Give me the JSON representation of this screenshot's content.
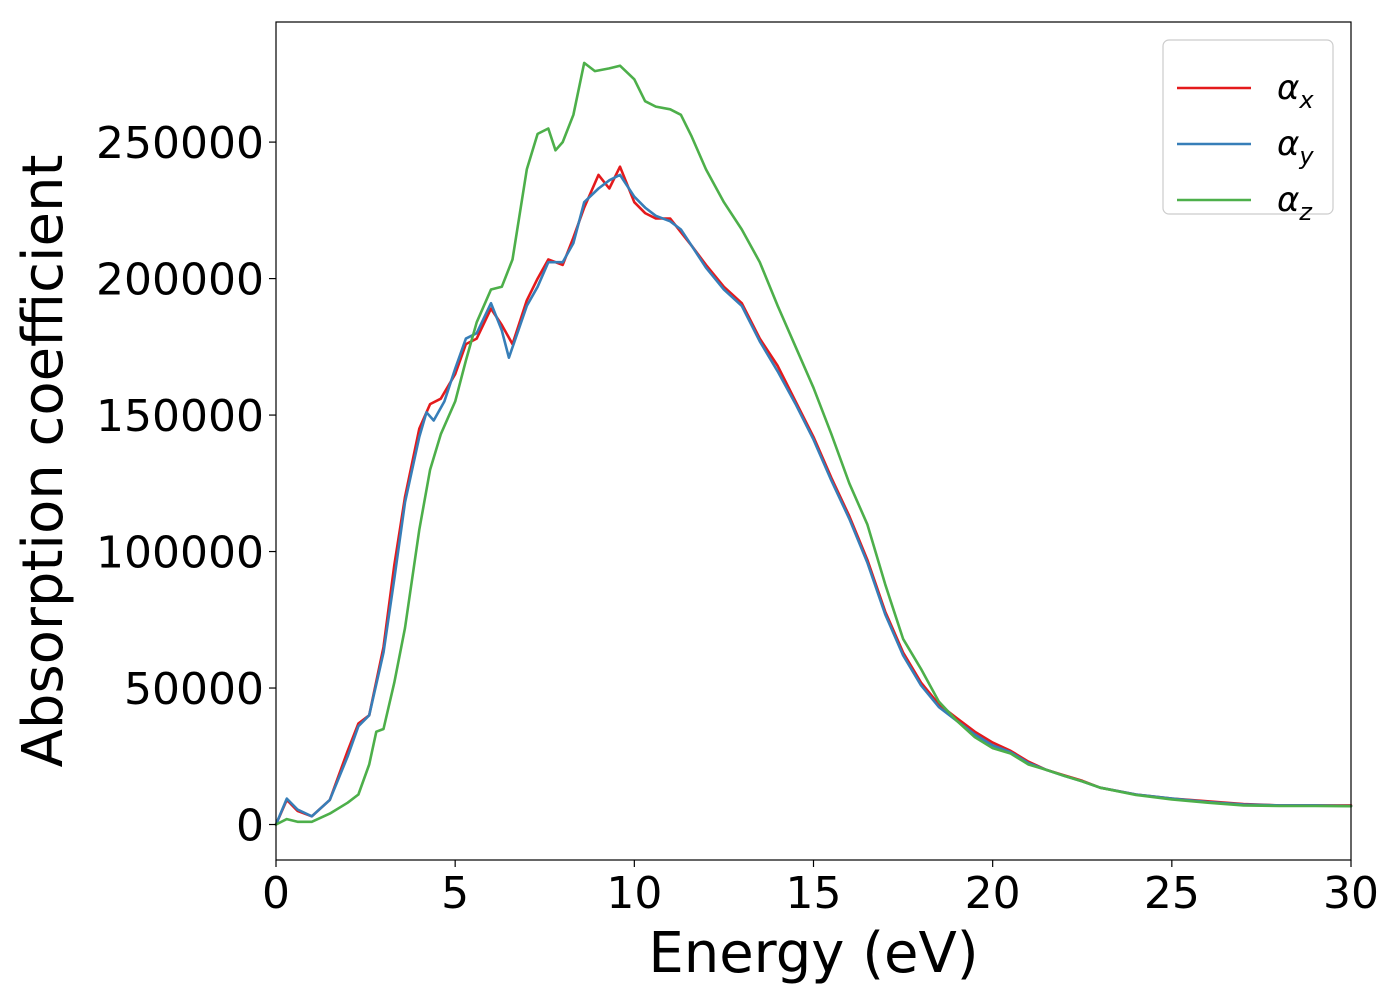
{
  "chart_data": {
    "type": "line",
    "xlabel": "Energy (eV)",
    "ylabel": "Absorption coefficient",
    "xlim": [
      0,
      30
    ],
    "ylim": [
      -13000,
      294000
    ],
    "xticks": [
      0,
      5,
      10,
      15,
      20,
      25,
      30
    ],
    "yticks": [
      0,
      50000,
      100000,
      150000,
      200000,
      250000
    ],
    "xtick_labels": [
      "0",
      "5",
      "10",
      "15",
      "20",
      "25",
      "30"
    ],
    "ytick_labels": [
      "0",
      "50000",
      "100000",
      "150000",
      "200000",
      "250000"
    ],
    "grid": false,
    "legend_position": "top-right",
    "series": [
      {
        "name": "α",
        "subscript": "x",
        "color": "#e41a1c",
        "points": [
          [
            0,
            0
          ],
          [
            0.3,
            9000
          ],
          [
            0.6,
            5000
          ],
          [
            1.0,
            3000
          ],
          [
            1.5,
            9000
          ],
          [
            2.0,
            27000
          ],
          [
            2.3,
            37000
          ],
          [
            2.6,
            40000
          ],
          [
            3.0,
            65000
          ],
          [
            3.3,
            95000
          ],
          [
            3.6,
            120000
          ],
          [
            4.0,
            145000
          ],
          [
            4.3,
            154000
          ],
          [
            4.6,
            156000
          ],
          [
            5.0,
            165000
          ],
          [
            5.3,
            176000
          ],
          [
            5.6,
            178000
          ],
          [
            6.0,
            189000
          ],
          [
            6.3,
            183000
          ],
          [
            6.6,
            176000
          ],
          [
            7.0,
            192000
          ],
          [
            7.3,
            200000
          ],
          [
            7.6,
            207000
          ],
          [
            8.0,
            205000
          ],
          [
            8.3,
            215000
          ],
          [
            8.6,
            226000
          ],
          [
            9.0,
            238000
          ],
          [
            9.3,
            233000
          ],
          [
            9.6,
            241000
          ],
          [
            10.0,
            228000
          ],
          [
            10.3,
            224000
          ],
          [
            10.6,
            222000
          ],
          [
            11.0,
            222000
          ],
          [
            11.3,
            217000
          ],
          [
            11.6,
            212000
          ],
          [
            12.0,
            205000
          ],
          [
            12.5,
            197000
          ],
          [
            13.0,
            191000
          ],
          [
            13.5,
            178000
          ],
          [
            14.0,
            168000
          ],
          [
            14.5,
            155000
          ],
          [
            15.0,
            142000
          ],
          [
            15.5,
            127000
          ],
          [
            16.0,
            113000
          ],
          [
            16.5,
            97000
          ],
          [
            17.0,
            78000
          ],
          [
            17.5,
            63000
          ],
          [
            18.0,
            52000
          ],
          [
            18.5,
            44000
          ],
          [
            19.0,
            39000
          ],
          [
            19.5,
            34000
          ],
          [
            20.0,
            30000
          ],
          [
            20.5,
            27000
          ],
          [
            21.0,
            23000
          ],
          [
            21.5,
            20000
          ],
          [
            22.0,
            18000
          ],
          [
            22.5,
            16000
          ],
          [
            23.0,
            13500
          ],
          [
            24.0,
            11000
          ],
          [
            25.0,
            9500
          ],
          [
            26.0,
            8500
          ],
          [
            27.0,
            7500
          ],
          [
            28.0,
            7000
          ],
          [
            29.0,
            7000
          ],
          [
            30.0,
            7000
          ]
        ]
      },
      {
        "name": "α",
        "subscript": "y",
        "color": "#377eb8",
        "points": [
          [
            0,
            0
          ],
          [
            0.3,
            9500
          ],
          [
            0.6,
            5500
          ],
          [
            1.0,
            3000
          ],
          [
            1.5,
            9000
          ],
          [
            2.0,
            25000
          ],
          [
            2.3,
            36000
          ],
          [
            2.6,
            40000
          ],
          [
            3.0,
            63000
          ],
          [
            3.3,
            90000
          ],
          [
            3.6,
            118000
          ],
          [
            4.0,
            142000
          ],
          [
            4.2,
            151000
          ],
          [
            4.4,
            148000
          ],
          [
            4.7,
            155000
          ],
          [
            5.0,
            167000
          ],
          [
            5.3,
            178000
          ],
          [
            5.6,
            180000
          ],
          [
            6.0,
            191000
          ],
          [
            6.3,
            181000
          ],
          [
            6.5,
            171000
          ],
          [
            7.0,
            190000
          ],
          [
            7.3,
            197000
          ],
          [
            7.6,
            206000
          ],
          [
            8.0,
            206000
          ],
          [
            8.3,
            213000
          ],
          [
            8.6,
            228000
          ],
          [
            9.0,
            233000
          ],
          [
            9.3,
            236000
          ],
          [
            9.6,
            238000
          ],
          [
            10.0,
            230000
          ],
          [
            10.3,
            226000
          ],
          [
            10.6,
            223000
          ],
          [
            11.0,
            221000
          ],
          [
            11.3,
            218000
          ],
          [
            11.6,
            212000
          ],
          [
            12.0,
            204000
          ],
          [
            12.5,
            196000
          ],
          [
            13.0,
            190000
          ],
          [
            13.5,
            177000
          ],
          [
            14.0,
            166000
          ],
          [
            14.5,
            154000
          ],
          [
            15.0,
            141000
          ],
          [
            15.5,
            126000
          ],
          [
            16.0,
            112000
          ],
          [
            16.5,
            96000
          ],
          [
            17.0,
            77000
          ],
          [
            17.5,
            62000
          ],
          [
            18.0,
            51000
          ],
          [
            18.5,
            43000
          ],
          [
            19.0,
            38000
          ],
          [
            19.5,
            33000
          ],
          [
            20.0,
            29000
          ],
          [
            20.5,
            26500
          ],
          [
            21.0,
            22500
          ],
          [
            21.5,
            20000
          ],
          [
            22.0,
            17800
          ],
          [
            22.5,
            15800
          ],
          [
            23.0,
            13500
          ],
          [
            24.0,
            11000
          ],
          [
            25.0,
            9500
          ],
          [
            26.0,
            8200
          ],
          [
            27.0,
            7300
          ],
          [
            28.0,
            7000
          ],
          [
            29.0,
            7000
          ],
          [
            30.0,
            6800
          ]
        ]
      },
      {
        "name": "α",
        "subscript": "z",
        "color": "#4daf4a",
        "points": [
          [
            0,
            0
          ],
          [
            0.3,
            2000
          ],
          [
            0.6,
            1000
          ],
          [
            1.0,
            1000
          ],
          [
            1.5,
            4000
          ],
          [
            2.0,
            8000
          ],
          [
            2.3,
            11000
          ],
          [
            2.6,
            22000
          ],
          [
            2.8,
            34000
          ],
          [
            3.0,
            35000
          ],
          [
            3.3,
            52000
          ],
          [
            3.6,
            72000
          ],
          [
            4.0,
            108000
          ],
          [
            4.3,
            130000
          ],
          [
            4.6,
            143000
          ],
          [
            5.0,
            155000
          ],
          [
            5.3,
            170000
          ],
          [
            5.6,
            184000
          ],
          [
            6.0,
            196000
          ],
          [
            6.3,
            197000
          ],
          [
            6.6,
            207000
          ],
          [
            7.0,
            240000
          ],
          [
            7.3,
            253000
          ],
          [
            7.6,
            255000
          ],
          [
            7.8,
            247000
          ],
          [
            8.0,
            250000
          ],
          [
            8.3,
            260000
          ],
          [
            8.6,
            279000
          ],
          [
            8.9,
            276000
          ],
          [
            9.3,
            277000
          ],
          [
            9.6,
            278000
          ],
          [
            10.0,
            273000
          ],
          [
            10.3,
            265000
          ],
          [
            10.6,
            263000
          ],
          [
            11.0,
            262000
          ],
          [
            11.3,
            260000
          ],
          [
            11.6,
            252000
          ],
          [
            12.0,
            240000
          ],
          [
            12.5,
            228000
          ],
          [
            13.0,
            218000
          ],
          [
            13.5,
            206000
          ],
          [
            14.0,
            190000
          ],
          [
            14.5,
            175000
          ],
          [
            15.0,
            160000
          ],
          [
            15.5,
            143000
          ],
          [
            16.0,
            125000
          ],
          [
            16.5,
            110000
          ],
          [
            17.0,
            88000
          ],
          [
            17.5,
            68000
          ],
          [
            18.0,
            57000
          ],
          [
            18.5,
            45000
          ],
          [
            19.0,
            38000
          ],
          [
            19.5,
            32000
          ],
          [
            20.0,
            28000
          ],
          [
            20.5,
            26000
          ],
          [
            21.0,
            22000
          ],
          [
            21.5,
            20000
          ],
          [
            22.0,
            17800
          ],
          [
            22.5,
            15800
          ],
          [
            23.0,
            13500
          ],
          [
            24.0,
            10800
          ],
          [
            25.0,
            9200
          ],
          [
            26.0,
            8000
          ],
          [
            27.0,
            7000
          ],
          [
            28.0,
            6800
          ],
          [
            29.0,
            6800
          ],
          [
            30.0,
            6700
          ]
        ]
      }
    ]
  }
}
